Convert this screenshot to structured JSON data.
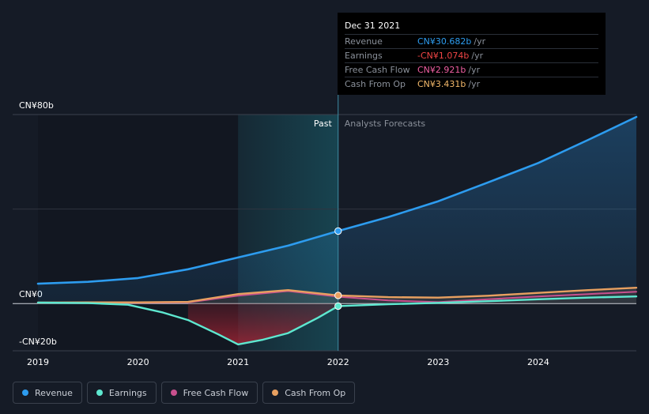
{
  "tooltip": {
    "date": "Dec 31 2021",
    "rows": [
      {
        "label": "Revenue",
        "value": "CN¥30.682b",
        "unit": "/yr",
        "color": "#2d9cef"
      },
      {
        "label": "Earnings",
        "value": "-CN¥1.074b",
        "unit": "/yr",
        "color": "#f04545"
      },
      {
        "label": "Free Cash Flow",
        "value": "CN¥2.921b",
        "unit": "/yr",
        "color": "#ef5fa2"
      },
      {
        "label": "Cash From Op",
        "value": "CN¥3.431b",
        "unit": "/yr",
        "color": "#f2b86a"
      }
    ]
  },
  "legend": [
    {
      "label": "Revenue",
      "color": "#2d9cef"
    },
    {
      "label": "Earnings",
      "color": "#5ee8d0"
    },
    {
      "label": "Free Cash Flow",
      "color": "#c8508e"
    },
    {
      "label": "Cash From Op",
      "color": "#e8a060"
    }
  ],
  "chart_data": {
    "type": "line",
    "x_unit": "year",
    "xlim": [
      2019.0,
      2024.98
    ],
    "ylim": [
      -20,
      80
    ],
    "y_tick_labels": [
      {
        "value": 80,
        "label": "CN¥80b"
      },
      {
        "value": 0,
        "label": "CN¥0"
      },
      {
        "value": -20,
        "label": "-CN¥20b"
      }
    ],
    "x_ticks": [
      "2019",
      "2020",
      "2021",
      "2022",
      "2023",
      "2024"
    ],
    "past_label": "Past",
    "forecast_label": "Analysts Forecasts",
    "divider_x": 2022.0,
    "highlight_start_x": 2021.0,
    "series": [
      {
        "name": "Revenue",
        "color": "#2d9cef",
        "points": [
          [
            2019.0,
            8.4
          ],
          [
            2019.5,
            9.2
          ],
          [
            2020.0,
            10.8
          ],
          [
            2020.5,
            14.5
          ],
          [
            2021.0,
            19.5
          ],
          [
            2021.5,
            24.5
          ],
          [
            2022.0,
            30.7
          ],
          [
            2022.5,
            36.6
          ],
          [
            2023.0,
            43.3
          ],
          [
            2023.5,
            51.3
          ],
          [
            2024.0,
            59.5
          ],
          [
            2024.5,
            69.3
          ],
          [
            2024.98,
            79.0
          ]
        ]
      },
      {
        "name": "Earnings",
        "color": "#5ee8d0",
        "points": [
          [
            2019.0,
            0.4
          ],
          [
            2019.5,
            0.2
          ],
          [
            2019.9,
            -0.5
          ],
          [
            2020.25,
            -3.8
          ],
          [
            2020.5,
            -7.0
          ],
          [
            2020.8,
            -13.0
          ],
          [
            2021.0,
            -17.3
          ],
          [
            2021.25,
            -15.3
          ],
          [
            2021.5,
            -12.5
          ],
          [
            2021.8,
            -6.0
          ],
          [
            2022.0,
            -1.07
          ],
          [
            2022.5,
            -0.3
          ],
          [
            2023.0,
            0.3
          ],
          [
            2023.5,
            1.0
          ],
          [
            2024.0,
            1.8
          ],
          [
            2024.5,
            2.5
          ],
          [
            2024.98,
            3.0
          ]
        ]
      },
      {
        "name": "Free Cash Flow",
        "color": "#c8508e",
        "points": [
          [
            2019.0,
            0.3
          ],
          [
            2019.5,
            0.4
          ],
          [
            2020.0,
            0.3
          ],
          [
            2020.5,
            0.5
          ],
          [
            2021.0,
            3.3
          ],
          [
            2021.5,
            5.3
          ],
          [
            2022.0,
            2.92
          ],
          [
            2022.5,
            1.3
          ],
          [
            2023.0,
            0.6
          ],
          [
            2023.5,
            1.8
          ],
          [
            2024.0,
            3.0
          ],
          [
            2024.5,
            4.0
          ],
          [
            2024.98,
            5.0
          ]
        ]
      },
      {
        "name": "Cash From Op",
        "color": "#e8a060",
        "points": [
          [
            2019.0,
            0.4
          ],
          [
            2019.5,
            0.5
          ],
          [
            2020.0,
            0.5
          ],
          [
            2020.5,
            0.7
          ],
          [
            2021.0,
            4.0
          ],
          [
            2021.5,
            5.7
          ],
          [
            2022.0,
            3.43
          ],
          [
            2022.5,
            2.7
          ],
          [
            2023.0,
            2.5
          ],
          [
            2023.5,
            3.3
          ],
          [
            2024.0,
            4.5
          ],
          [
            2024.5,
            5.7
          ],
          [
            2024.98,
            6.7
          ]
        ]
      }
    ]
  }
}
